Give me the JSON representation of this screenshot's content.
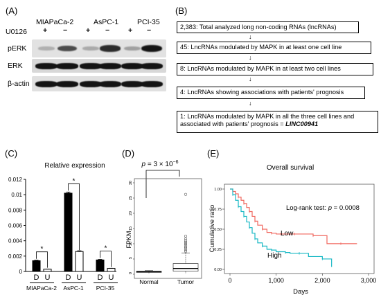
{
  "panels": {
    "A": "(A)",
    "B": "(B)",
    "C": "(C)",
    "D": "(D)",
    "E": "(E)"
  },
  "western": {
    "cell_lines": [
      "MIAPaCa-2",
      "AsPC-1",
      "PCI-35"
    ],
    "treatment_label": "U0126",
    "signs": [
      "+",
      "−",
      "+",
      "−",
      "+",
      "−"
    ],
    "rows": [
      "pERK",
      "ERK",
      "β-actin"
    ],
    "perk_band_intensity": [
      0.22,
      0.72,
      0.25,
      0.88,
      0.3,
      1.0
    ]
  },
  "flowchart": {
    "boxes": [
      "2,383: Total analyzed long non-coding RNAs (lncRNAs)",
      "45: LncRNAs modulated by MAPK in at least one cell line",
      "8: LncRNAs modulated by MAPK in at least two cell lines",
      "4: LncRNAs showing associations with patients' prognosis"
    ],
    "last_box_line1": "1: LncRNAs modulated by MAPK in all the three cell lines and",
    "last_box_line2": "associated with patients' prognosis = ",
    "last_box_gene": "LINC00941",
    "arrow": "↓"
  },
  "chart_data": [
    {
      "type": "bar",
      "title": "Relative expression",
      "groups": [
        "MIAPaCa-2",
        "AsPC-1",
        "PCI-35"
      ],
      "bar_labels": [
        "D",
        "U"
      ],
      "series": [
        {
          "name": "D",
          "values": [
            0.0014,
            0.0102,
            0.0015
          ],
          "errors": [
            7e-05,
            0.00015,
            8e-05
          ]
        },
        {
          "name": "U",
          "values": [
            0.0003,
            0.0026,
            0.0004
          ],
          "errors": [
            2e-05,
            0.0001,
            2e-05
          ]
        }
      ],
      "yticks": [
        "0",
        "0.002",
        "0.004",
        "0.006",
        "0.008",
        "0.01",
        "0.012"
      ],
      "ylim": [
        0,
        0.012
      ],
      "significance": [
        "*",
        "*",
        "*"
      ]
    },
    {
      "type": "boxplot",
      "title_p": "p",
      "title_rest": " = 3 × 10",
      "title_exp": "−6",
      "ylabel": "FPKM",
      "categories": [
        "Normal",
        "Tumor"
      ],
      "ylim": [
        0,
        30
      ],
      "yticks": [
        "0",
        "5",
        "10",
        "15",
        "20",
        "25",
        "30"
      ],
      "boxes": [
        {
          "min": 0.3,
          "q1": 0.6,
          "median": 0.8,
          "q3": 1.0,
          "max": 1.2
        },
        {
          "min": 0.2,
          "q1": 1.0,
          "median": 1.9,
          "q3": 3.5,
          "max": 7.0
        }
      ],
      "tumor_outliers": [
        7.5,
        8.0,
        8.5,
        9.0,
        9.5,
        10.0,
        10.5,
        11.0,
        11.6,
        12.5,
        26.2
      ]
    },
    {
      "type": "line",
      "title": "Overall survival",
      "xlabel": "Days",
      "ylabel": "Cumulative ratio",
      "xticks": [
        "0",
        "1,000",
        "2,000",
        "3,000"
      ],
      "yticks": [
        "0.00",
        "0.25",
        "0.50",
        "0.75",
        "1.00"
      ],
      "xlim": [
        0,
        3000
      ],
      "ylim": [
        0,
        1
      ],
      "logrank_prefix": "Log-rank test: ",
      "logrank_p": "p",
      "logrank_rest": " = 0.0008",
      "series": [
        {
          "name": "Low",
          "color": "#f0675e",
          "x": [
            0,
            60,
            120,
            180,
            240,
            300,
            360,
            420,
            480,
            540,
            600,
            700,
            800,
            900,
            1000,
            1100,
            1200,
            1400,
            1500,
            1800,
            2100,
            2400,
            2750
          ],
          "y": [
            1.0,
            0.97,
            0.94,
            0.9,
            0.86,
            0.82,
            0.77,
            0.72,
            0.66,
            0.6,
            0.55,
            0.5,
            0.46,
            0.45,
            0.44,
            0.44,
            0.44,
            0.44,
            0.44,
            0.42,
            0.32,
            0.32,
            0.32
          ]
        },
        {
          "name": "High",
          "color": "#17b8c4",
          "x": [
            0,
            60,
            120,
            180,
            240,
            300,
            360,
            420,
            480,
            540,
            600,
            700,
            800,
            900,
            1000,
            1200,
            1300,
            1500,
            1700,
            2000,
            2200
          ],
          "y": [
            1.0,
            0.93,
            0.86,
            0.78,
            0.72,
            0.66,
            0.59,
            0.52,
            0.45,
            0.38,
            0.33,
            0.29,
            0.25,
            0.24,
            0.22,
            0.21,
            0.2,
            0.2,
            0.16,
            0.13,
            0.03
          ]
        }
      ]
    }
  ]
}
